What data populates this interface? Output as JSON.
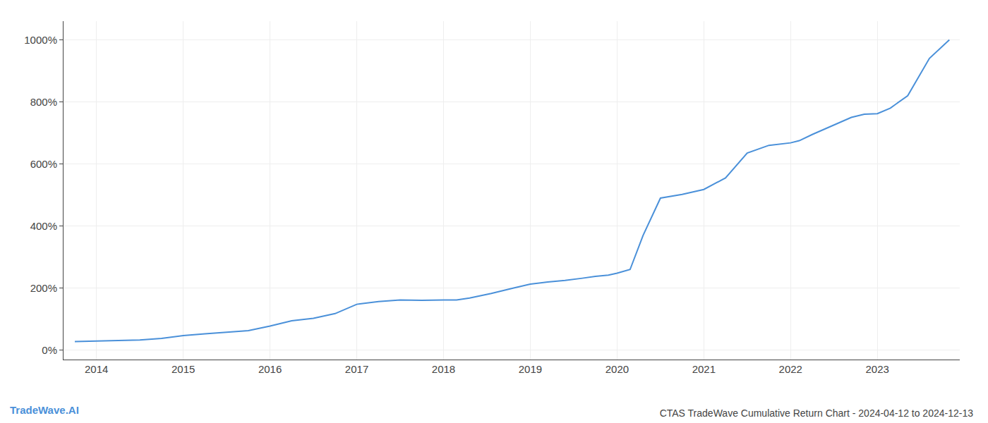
{
  "chart_data": {
    "type": "line",
    "title": "CTAS TradeWave Cumulative Return Chart - 2024-04-12 to 2024-12-13",
    "annotations": [
      "TradeWave.AI"
    ],
    "x": [
      2013.75,
      2014.0,
      2014.2,
      2014.5,
      2014.75,
      2015.0,
      2015.25,
      2015.5,
      2015.75,
      2016.0,
      2016.25,
      2016.5,
      2016.75,
      2017.0,
      2017.25,
      2017.5,
      2017.75,
      2018.0,
      2018.15,
      2018.3,
      2018.55,
      2018.8,
      2019.0,
      2019.2,
      2019.4,
      2019.6,
      2019.75,
      2019.9,
      2020.0,
      2020.15,
      2020.3,
      2020.5,
      2020.75,
      2021.0,
      2021.25,
      2021.5,
      2021.75,
      2022.0,
      2022.1,
      2022.25,
      2022.5,
      2022.7,
      2022.85,
      2023.0,
      2023.15,
      2023.35,
      2023.6,
      2023.83
    ],
    "values": [
      28,
      30,
      31,
      33,
      38,
      47,
      53,
      58,
      63,
      78,
      95,
      103,
      118,
      148,
      157,
      162,
      161,
      162,
      162,
      168,
      183,
      200,
      213,
      220,
      225,
      232,
      238,
      242,
      248,
      260,
      370,
      490,
      502,
      518,
      555,
      635,
      660,
      668,
      675,
      695,
      725,
      750,
      760,
      762,
      780,
      820,
      940,
      1000
    ],
    "color": "#4a90d9",
    "xlim": [
      2013.62,
      2023.95
    ],
    "xticks": [
      2014,
      2015,
      2016,
      2017,
      2018,
      2019,
      2020,
      2021,
      2022,
      2023
    ],
    "ylim": [
      -30,
      1060
    ],
    "yticks": [
      {
        "value": 0,
        "label": "0%"
      },
      {
        "value": 200,
        "label": "200%"
      },
      {
        "value": 400,
        "label": "400%"
      },
      {
        "value": 600,
        "label": "600%"
      },
      {
        "value": 800,
        "label": "800%"
      },
      {
        "value": 1000,
        "label": "1000%"
      }
    ],
    "grid": true
  }
}
